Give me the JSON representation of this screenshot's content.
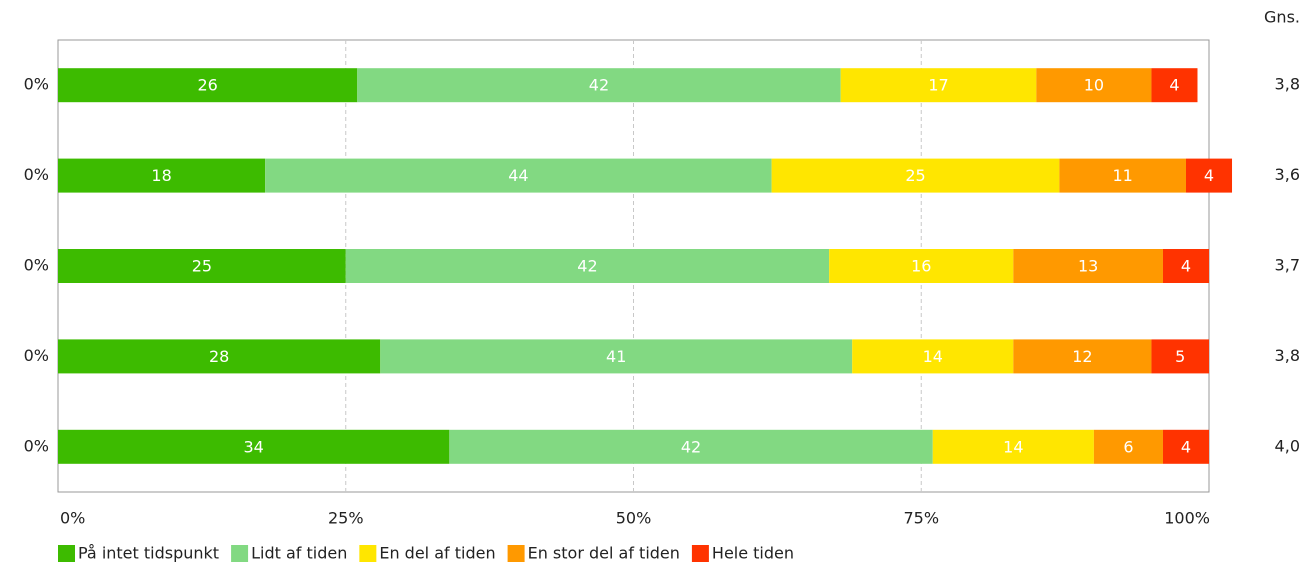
{
  "chart_data": {
    "type": "stacked_bar_horizontal",
    "categories": [
      null,
      null,
      null,
      null,
      null
    ],
    "row_labels": [
      "0%",
      "0%",
      "0%",
      "0%",
      "0%"
    ],
    "averages_title": "Gns.",
    "averages": [
      "3,8",
      "3,6",
      "3,7",
      "3,8",
      "4,0"
    ],
    "series": [
      {
        "name": "På intet tidspunkt",
        "color": "#3dbb00",
        "values": [
          26,
          18,
          25,
          28,
          34
        ]
      },
      {
        "name": "Lidt af tiden",
        "color": "#82d982",
        "values": [
          42,
          44,
          42,
          41,
          42
        ]
      },
      {
        "name": "En del af tiden",
        "color": "#ffe600",
        "values": [
          17,
          25,
          16,
          14,
          14
        ]
      },
      {
        "name": "En stor del af tiden",
        "color": "#ff9900",
        "values": [
          10,
          11,
          13,
          12,
          6
        ]
      },
      {
        "name": "Hele tiden",
        "color": "#ff3300",
        "values": [
          4,
          4,
          4,
          5,
          4
        ]
      }
    ],
    "xlim": [
      0,
      100
    ],
    "xticks": [
      {
        "value": 0,
        "label": "0%"
      },
      {
        "value": 25,
        "label": "25%"
      },
      {
        "value": 50,
        "label": "50%"
      },
      {
        "value": 75,
        "label": "75%"
      },
      {
        "value": 100,
        "label": "100%"
      }
    ],
    "grid": true
  }
}
